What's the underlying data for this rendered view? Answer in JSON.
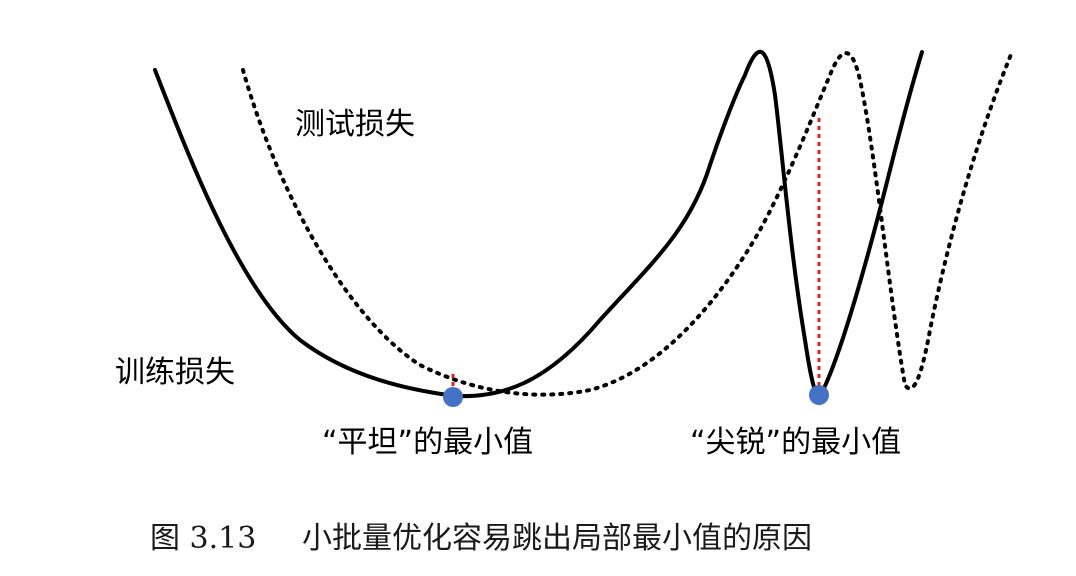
{
  "labels": {
    "test_loss": "测试损失",
    "train_loss": "训练损失",
    "flat_minimum": "“平坦”的最小值",
    "sharp_minimum": "“尖锐”的最小值"
  },
  "caption": {
    "number": "图 3.13",
    "text": "小批量优化容易跳出局部最小值的原因"
  },
  "colors": {
    "curve": "#000000",
    "gap_line": "#e0201b",
    "minimum_point": "#4472c4"
  }
}
